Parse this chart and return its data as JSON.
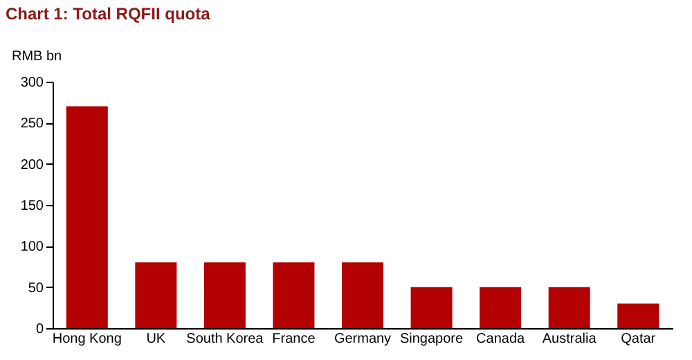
{
  "chart_data": {
    "type": "bar",
    "title": "Chart 1: Total RQFII quota",
    "ylabel": "RMB bn",
    "categories": [
      "Hong Kong",
      "UK",
      "South Korea",
      "France",
      "Germany",
      "Singapore",
      "Canada",
      "Australia",
      "Qatar"
    ],
    "values": [
      270,
      80,
      80,
      80,
      80,
      50,
      50,
      50,
      30
    ],
    "color": "#b30000",
    "ylim": [
      0,
      300
    ],
    "yticks": [
      0,
      50,
      100,
      150,
      200,
      250,
      300
    ],
    "grid": false
  }
}
